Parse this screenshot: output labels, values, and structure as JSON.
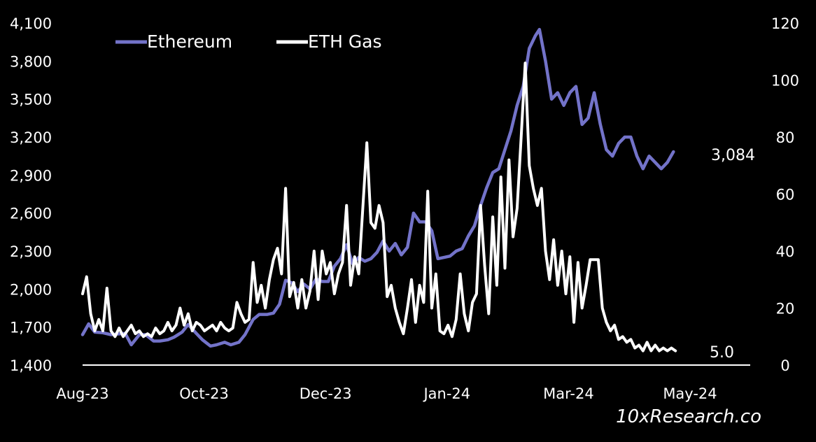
{
  "watermark": "10xResearch.co",
  "legend": [
    {
      "label": "Ethereum",
      "color": "#7373c9"
    },
    {
      "label": "ETH Gas",
      "color": "#ffffff"
    }
  ],
  "chart_data": {
    "type": "line",
    "x_axis": {
      "tick_labels": [
        "Aug-23",
        "Oct-23",
        "Dec-23",
        "Jan-24",
        "Mar-24",
        "May-24"
      ],
      "start": "2023-08-01",
      "end": "2024-05-31"
    },
    "y_left": {
      "min": 1400,
      "max": 4100,
      "ticks": [
        1400,
        1700,
        2000,
        2300,
        2600,
        2900,
        3200,
        3500,
        3800,
        4100
      ],
      "tick_labels": [
        "1,400",
        "1,700",
        "2,000",
        "2,300",
        "2,600",
        "2,900",
        "3,200",
        "3,500",
        "3,800",
        "4,100"
      ]
    },
    "y_right": {
      "min": 0,
      "max": 120,
      "ticks": [
        0,
        20,
        40,
        60,
        80,
        100,
        120
      ],
      "tick_labels": [
        "0",
        "20",
        "40",
        "60",
        "80",
        "100",
        "120"
      ]
    },
    "grid": false,
    "legend_position": "top-left",
    "end_labels": {
      "Ethereum": "3,084",
      "ETH Gas": "5.0"
    },
    "series": [
      {
        "name": "Ethereum",
        "axis": "left",
        "color": "#7373c9",
        "points": [
          [
            "2023-08-01",
            1640
          ],
          [
            "2023-08-04",
            1725
          ],
          [
            "2023-08-07",
            1660
          ],
          [
            "2023-08-11",
            1655
          ],
          [
            "2023-08-15",
            1640
          ],
          [
            "2023-08-18",
            1645
          ],
          [
            "2023-08-22",
            1650
          ],
          [
            "2023-08-25",
            1560
          ],
          [
            "2023-08-29",
            1640
          ],
          [
            "2023-09-01",
            1640
          ],
          [
            "2023-09-05",
            1590
          ],
          [
            "2023-09-08",
            1590
          ],
          [
            "2023-09-12",
            1600
          ],
          [
            "2023-09-15",
            1620
          ],
          [
            "2023-09-19",
            1660
          ],
          [
            "2023-09-22",
            1720
          ],
          [
            "2023-09-26",
            1650
          ],
          [
            "2023-09-29",
            1600
          ],
          [
            "2023-10-03",
            1550
          ],
          [
            "2023-10-06",
            1560
          ],
          [
            "2023-10-10",
            1580
          ],
          [
            "2023-10-13",
            1560
          ],
          [
            "2023-10-17",
            1580
          ],
          [
            "2023-10-20",
            1640
          ],
          [
            "2023-10-24",
            1760
          ],
          [
            "2023-10-27",
            1800
          ],
          [
            "2023-10-31",
            1800
          ],
          [
            "2023-11-03",
            1810
          ],
          [
            "2023-11-06",
            1880
          ],
          [
            "2023-11-09",
            2070
          ],
          [
            "2023-11-12",
            2050
          ],
          [
            "2023-11-15",
            1980
          ],
          [
            "2023-11-18",
            2040
          ],
          [
            "2023-11-21",
            2000
          ],
          [
            "2023-11-24",
            2080
          ],
          [
            "2023-11-27",
            2060
          ],
          [
            "2023-11-30",
            2060
          ],
          [
            "2023-12-03",
            2180
          ],
          [
            "2023-12-06",
            2240
          ],
          [
            "2023-12-09",
            2350
          ],
          [
            "2023-12-12",
            2200
          ],
          [
            "2023-12-15",
            2250
          ],
          [
            "2023-12-18",
            2220
          ],
          [
            "2023-12-21",
            2240
          ],
          [
            "2023-12-24",
            2290
          ],
          [
            "2023-12-27",
            2380
          ],
          [
            "2023-12-30",
            2300
          ],
          [
            "2024-01-02",
            2360
          ],
          [
            "2024-01-05",
            2270
          ],
          [
            "2024-01-08",
            2330
          ],
          [
            "2024-01-11",
            2600
          ],
          [
            "2024-01-14",
            2530
          ],
          [
            "2024-01-17",
            2530
          ],
          [
            "2024-01-20",
            2460
          ],
          [
            "2024-01-23",
            2240
          ],
          [
            "2024-01-26",
            2250
          ],
          [
            "2024-01-29",
            2260
          ],
          [
            "2024-02-01",
            2300
          ],
          [
            "2024-02-04",
            2320
          ],
          [
            "2024-02-07",
            2420
          ],
          [
            "2024-02-10",
            2500
          ],
          [
            "2024-02-13",
            2660
          ],
          [
            "2024-02-16",
            2800
          ],
          [
            "2024-02-19",
            2920
          ],
          [
            "2024-02-22",
            2950
          ],
          [
            "2024-02-25",
            3100
          ],
          [
            "2024-02-28",
            3250
          ],
          [
            "2024-03-02",
            3450
          ],
          [
            "2024-03-05",
            3600
          ],
          [
            "2024-03-08",
            3900
          ],
          [
            "2024-03-11",
            4000
          ],
          [
            "2024-03-13",
            4050
          ],
          [
            "2024-03-16",
            3800
          ],
          [
            "2024-03-19",
            3500
          ],
          [
            "2024-03-22",
            3550
          ],
          [
            "2024-03-25",
            3450
          ],
          [
            "2024-03-28",
            3550
          ],
          [
            "2024-03-31",
            3600
          ],
          [
            "2024-04-03",
            3300
          ],
          [
            "2024-04-06",
            3350
          ],
          [
            "2024-04-09",
            3550
          ],
          [
            "2024-04-12",
            3300
          ],
          [
            "2024-04-15",
            3100
          ],
          [
            "2024-04-18",
            3050
          ],
          [
            "2024-04-21",
            3150
          ],
          [
            "2024-04-24",
            3200
          ],
          [
            "2024-04-27",
            3200
          ],
          [
            "2024-04-30",
            3050
          ],
          [
            "2024-05-03",
            2950
          ],
          [
            "2024-05-06",
            3050
          ],
          [
            "2024-05-09",
            3000
          ],
          [
            "2024-05-12",
            2950
          ],
          [
            "2024-05-15",
            3000
          ],
          [
            "2024-05-18",
            3084
          ]
        ]
      },
      {
        "name": "ETH Gas",
        "axis": "right",
        "color": "#ffffff",
        "points": [
          [
            "2023-08-01",
            25
          ],
          [
            "2023-08-03",
            31
          ],
          [
            "2023-08-05",
            18
          ],
          [
            "2023-08-07",
            12
          ],
          [
            "2023-08-09",
            16
          ],
          [
            "2023-08-11",
            12
          ],
          [
            "2023-08-13",
            27
          ],
          [
            "2023-08-15",
            12
          ],
          [
            "2023-08-17",
            10
          ],
          [
            "2023-08-19",
            13
          ],
          [
            "2023-08-21",
            10
          ],
          [
            "2023-08-23",
            12
          ],
          [
            "2023-08-25",
            14
          ],
          [
            "2023-08-27",
            11
          ],
          [
            "2023-08-29",
            12
          ],
          [
            "2023-08-31",
            10
          ],
          [
            "2023-09-02",
            11
          ],
          [
            "2023-09-04",
            10
          ],
          [
            "2023-09-06",
            13
          ],
          [
            "2023-09-08",
            11
          ],
          [
            "2023-09-10",
            12
          ],
          [
            "2023-09-12",
            15
          ],
          [
            "2023-09-14",
            12
          ],
          [
            "2023-09-16",
            14
          ],
          [
            "2023-09-18",
            20
          ],
          [
            "2023-09-20",
            14
          ],
          [
            "2023-09-22",
            18
          ],
          [
            "2023-09-24",
            12
          ],
          [
            "2023-09-26",
            15
          ],
          [
            "2023-09-28",
            14
          ],
          [
            "2023-09-30",
            12
          ],
          [
            "2023-10-02",
            13
          ],
          [
            "2023-10-04",
            14
          ],
          [
            "2023-10-06",
            12
          ],
          [
            "2023-10-08",
            15
          ],
          [
            "2023-10-10",
            13
          ],
          [
            "2023-10-12",
            12
          ],
          [
            "2023-10-14",
            13
          ],
          [
            "2023-10-16",
            22
          ],
          [
            "2023-10-18",
            18
          ],
          [
            "2023-10-20",
            15
          ],
          [
            "2023-10-22",
            16
          ],
          [
            "2023-10-24",
            36
          ],
          [
            "2023-10-26",
            22
          ],
          [
            "2023-10-28",
            28
          ],
          [
            "2023-10-30",
            20
          ],
          [
            "2023-11-01",
            30
          ],
          [
            "2023-11-03",
            37
          ],
          [
            "2023-11-05",
            41
          ],
          [
            "2023-11-07",
            32
          ],
          [
            "2023-11-09",
            62
          ],
          [
            "2023-11-11",
            24
          ],
          [
            "2023-11-13",
            29
          ],
          [
            "2023-11-15",
            20
          ],
          [
            "2023-11-17",
            30
          ],
          [
            "2023-11-19",
            20
          ],
          [
            "2023-11-21",
            26
          ],
          [
            "2023-11-23",
            40
          ],
          [
            "2023-11-25",
            23
          ],
          [
            "2023-11-27",
            40
          ],
          [
            "2023-11-29",
            32
          ],
          [
            "2023-12-01",
            36
          ],
          [
            "2023-12-03",
            25
          ],
          [
            "2023-12-05",
            32
          ],
          [
            "2023-12-07",
            36
          ],
          [
            "2023-12-09",
            56
          ],
          [
            "2023-12-11",
            28
          ],
          [
            "2023-12-13",
            38
          ],
          [
            "2023-12-15",
            32
          ],
          [
            "2023-12-17",
            55
          ],
          [
            "2023-12-19",
            78
          ],
          [
            "2023-12-21",
            50
          ],
          [
            "2023-12-23",
            48
          ],
          [
            "2023-12-25",
            56
          ],
          [
            "2023-12-27",
            50
          ],
          [
            "2023-12-29",
            24
          ],
          [
            "2023-12-31",
            28
          ],
          [
            "2024-01-02",
            20
          ],
          [
            "2024-01-04",
            15
          ],
          [
            "2024-01-06",
            11
          ],
          [
            "2024-01-08",
            20
          ],
          [
            "2024-01-10",
            30
          ],
          [
            "2024-01-12",
            15
          ],
          [
            "2024-01-14",
            28
          ],
          [
            "2024-01-16",
            22
          ],
          [
            "2024-01-18",
            61
          ],
          [
            "2024-01-20",
            20
          ],
          [
            "2024-01-22",
            32
          ],
          [
            "2024-01-24",
            12
          ],
          [
            "2024-01-26",
            11
          ],
          [
            "2024-01-28",
            14
          ],
          [
            "2024-01-30",
            10
          ],
          [
            "2024-02-01",
            16
          ],
          [
            "2024-02-03",
            32
          ],
          [
            "2024-02-05",
            18
          ],
          [
            "2024-02-07",
            12
          ],
          [
            "2024-02-09",
            22
          ],
          [
            "2024-02-11",
            25
          ],
          [
            "2024-02-13",
            56
          ],
          [
            "2024-02-15",
            35
          ],
          [
            "2024-02-17",
            18
          ],
          [
            "2024-02-19",
            52
          ],
          [
            "2024-02-21",
            28
          ],
          [
            "2024-02-23",
            66
          ],
          [
            "2024-02-25",
            34
          ],
          [
            "2024-02-27",
            72
          ],
          [
            "2024-02-29",
            45
          ],
          [
            "2024-03-02",
            55
          ],
          [
            "2024-03-04",
            80
          ],
          [
            "2024-03-06",
            106
          ],
          [
            "2024-03-08",
            70
          ],
          [
            "2024-03-10",
            62
          ],
          [
            "2024-03-12",
            56
          ],
          [
            "2024-03-14",
            62
          ],
          [
            "2024-03-16",
            40
          ],
          [
            "2024-03-18",
            30
          ],
          [
            "2024-03-20",
            44
          ],
          [
            "2024-03-22",
            28
          ],
          [
            "2024-03-24",
            40
          ],
          [
            "2024-03-26",
            25
          ],
          [
            "2024-03-28",
            38
          ],
          [
            "2024-03-30",
            15
          ],
          [
            "2024-04-01",
            36
          ],
          [
            "2024-04-03",
            20
          ],
          [
            "2024-04-05",
            28
          ],
          [
            "2024-04-07",
            37
          ],
          [
            "2024-04-09",
            37
          ],
          [
            "2024-04-11",
            37
          ],
          [
            "2024-04-13",
            20
          ],
          [
            "2024-04-15",
            15
          ],
          [
            "2024-04-17",
            12
          ],
          [
            "2024-04-19",
            14
          ],
          [
            "2024-04-21",
            9
          ],
          [
            "2024-04-23",
            10
          ],
          [
            "2024-04-25",
            8
          ],
          [
            "2024-04-27",
            9
          ],
          [
            "2024-04-29",
            6
          ],
          [
            "2024-05-01",
            7
          ],
          [
            "2024-05-03",
            5
          ],
          [
            "2024-05-05",
            8
          ],
          [
            "2024-05-07",
            5
          ],
          [
            "2024-05-09",
            7
          ],
          [
            "2024-05-11",
            5
          ],
          [
            "2024-05-13",
            6
          ],
          [
            "2024-05-15",
            5
          ],
          [
            "2024-05-17",
            6
          ],
          [
            "2024-05-19",
            5
          ]
        ]
      }
    ]
  }
}
